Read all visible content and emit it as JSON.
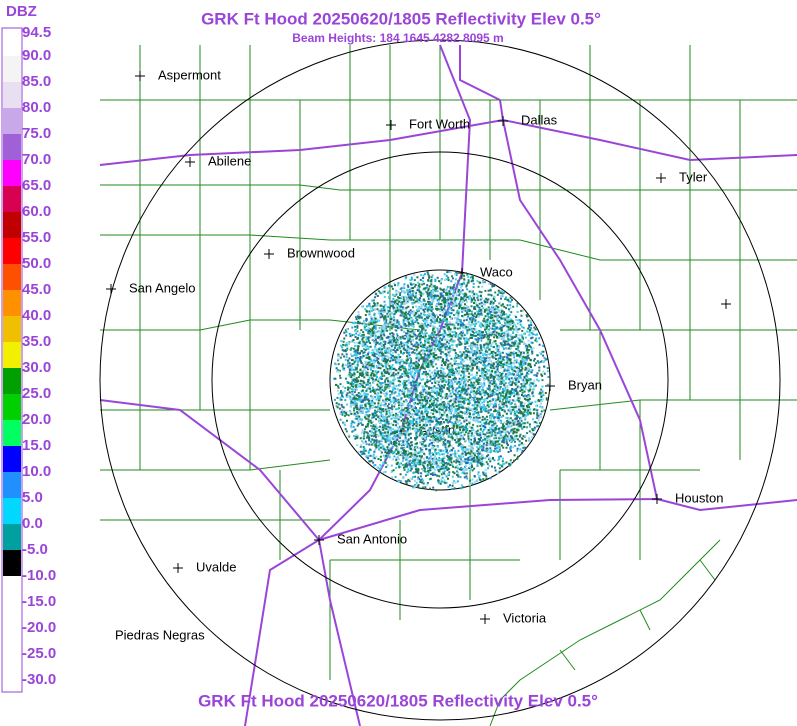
{
  "header": {
    "title": "GRK Ft Hood 20250620/1805 Reflectivity Elev 0.5°",
    "subtitle": "Beam Heights: 184 1645 4282 8095 m",
    "footer": "GRK Ft Hood 20250620/1805 Reflectivity Elev 0.5°"
  },
  "legend": {
    "unit": "DBZ",
    "labels": [
      "94.5",
      "90.0",
      "85.0",
      "80.0",
      "75.0",
      "70.0",
      "65.0",
      "60.0",
      "55.0",
      "50.0",
      "45.0",
      "40.0",
      "35.0",
      "30.0",
      "25.0",
      "20.0",
      "15.0",
      "10.0",
      "5.0",
      "0.0",
      "-5.0",
      "-10.0",
      "-15.0",
      "-20.0",
      "-25.0",
      "-30.0"
    ]
  },
  "cities": [
    {
      "label": "Aspermont"
    },
    {
      "label": "Fort Worth"
    },
    {
      "label": "Dallas"
    },
    {
      "label": "Abilene"
    },
    {
      "label": "Tyler"
    },
    {
      "label": "Brownwood"
    },
    {
      "label": "Waco"
    },
    {
      "label": "San Angelo"
    },
    {
      "label": "Bryan"
    },
    {
      "label": "Austin"
    },
    {
      "label": "Houston"
    },
    {
      "label": "San Antonio"
    },
    {
      "label": "Uvalde"
    },
    {
      "label": "Victoria"
    },
    {
      "label": "Piedras Negras"
    }
  ]
}
